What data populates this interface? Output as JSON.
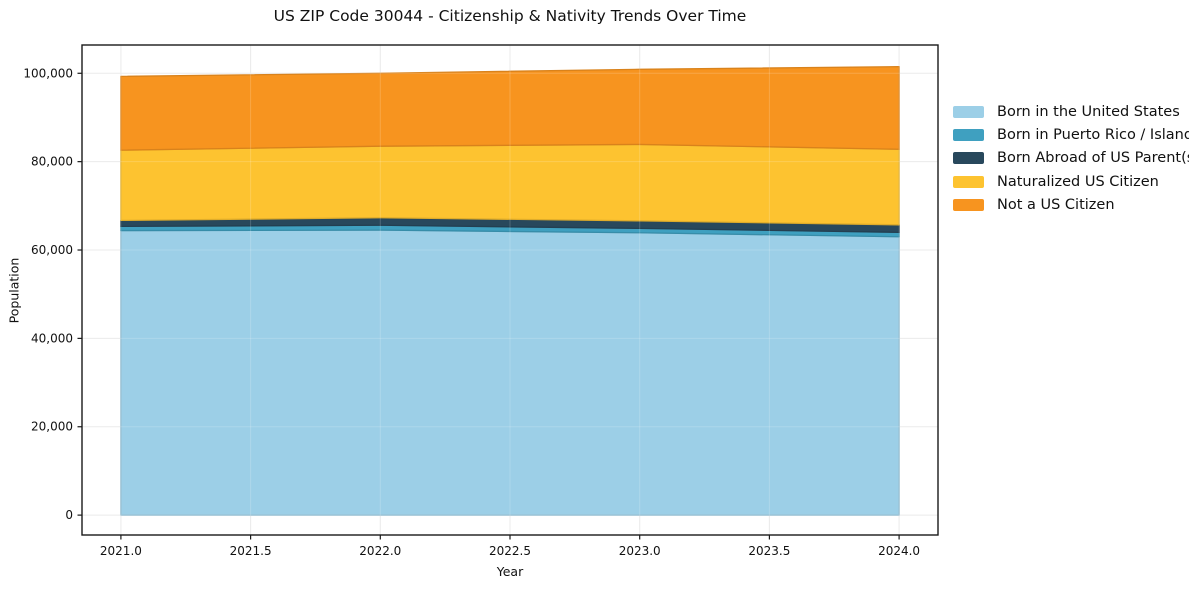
{
  "title": "US ZIP Code 30044 - Citizenship & Nativity Trends Over Time",
  "chart_data": {
    "type": "area",
    "stacked": true,
    "title": "US ZIP Code 30044 - Citizenship & Nativity Trends Over Time",
    "xlabel": "Year",
    "ylabel": "Population",
    "x": [
      2021,
      2022,
      2023,
      2024
    ],
    "series": [
      {
        "name": "Born in the United States",
        "color": "#9CCFE7",
        "values": [
          64400,
          64500,
          63900,
          63000
        ]
      },
      {
        "name": "Born in Puerto Rico / Islands",
        "color": "#3FA0C0",
        "values": [
          950,
          1100,
          1000,
          1000
        ]
      },
      {
        "name": "Born Abroad of US Parent(s)",
        "color": "#28485C",
        "values": [
          1350,
          1700,
          1700,
          1700
        ]
      },
      {
        "name": "Naturalized US Citizen",
        "color": "#FDC330",
        "values": [
          15900,
          16200,
          17300,
          17100
        ]
      },
      {
        "name": "Not a US Citizen",
        "color": "#F7941F",
        "values": [
          16700,
          16500,
          17000,
          18700
        ]
      }
    ],
    "totals": [
      99300,
      100000,
      100900,
      101500
    ],
    "xticks": [
      2021.0,
      2021.5,
      2022.0,
      2022.5,
      2023.0,
      2023.5,
      2024.0
    ],
    "xtick_labels": [
      "2021.0",
      "2021.5",
      "2022.0",
      "2022.5",
      "2023.0",
      "2023.5",
      "2024.0"
    ],
    "yticks": [
      0,
      20000,
      40000,
      60000,
      80000,
      100000
    ],
    "ytick_labels": [
      "0",
      "20,000",
      "40,000",
      "60,000",
      "80,000",
      "100,000"
    ],
    "xlim": [
      2020.85,
      2024.15
    ],
    "ylim": [
      -4500,
      106400
    ],
    "grid": true,
    "grid_color": "#e7e7e7",
    "frame_color": "#1a1a1a",
    "legend_position": "outside-right"
  }
}
